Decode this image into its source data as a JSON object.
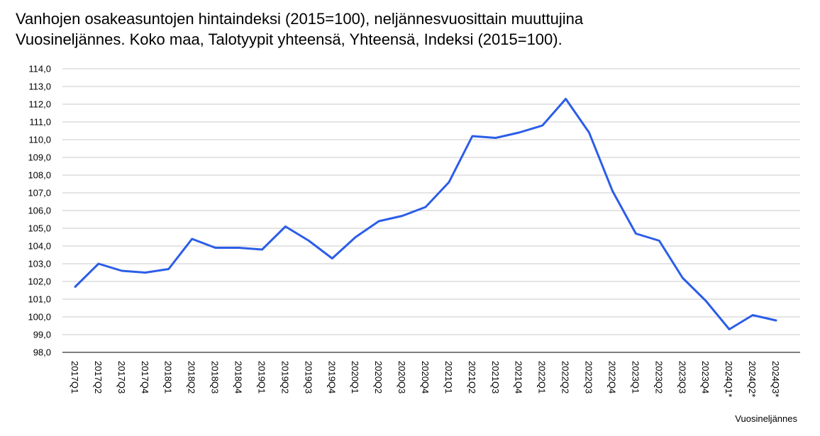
{
  "chart_data": {
    "type": "line",
    "title": "Vanhojen osakeasuntojen hintaindeksi (2015=100), neljännesvuosittain muuttujina",
    "subtitle": "Vuosineljännes. Koko maa, Talotyypit yhteensä, Yhteensä, Indeksi (2015=100).",
    "xlabel": "Vuosineljännes",
    "ylabel": "",
    "ylim": [
      98,
      114
    ],
    "yticks": [
      "98,0",
      "99,0",
      "100,0",
      "101,0",
      "102,0",
      "103,0",
      "104,0",
      "105,0",
      "106,0",
      "107,0",
      "108,0",
      "109,0",
      "110,0",
      "111,0",
      "112,0",
      "113,0",
      "114,0"
    ],
    "grid": true,
    "line_color": "#2b5de8",
    "categories": [
      "2017Q1",
      "2017Q2",
      "2017Q3",
      "2017Q4",
      "2018Q1",
      "2018Q2",
      "2018Q3",
      "2018Q4",
      "2019Q1",
      "2019Q2",
      "2019Q3",
      "2019Q4",
      "2020Q1",
      "2020Q2",
      "2020Q3",
      "2020Q4",
      "2021Q1",
      "2021Q2",
      "2021Q3",
      "2021Q4",
      "2022Q1",
      "2022Q2",
      "2022Q3",
      "2022Q4",
      "2023Q1",
      "2023Q2",
      "2023Q3",
      "2023Q4",
      "2024Q1*",
      "2024Q2*",
      "2024Q3*"
    ],
    "series": [
      {
        "values": [
          101.7,
          103.0,
          102.6,
          102.5,
          102.7,
          104.4,
          103.9,
          103.9,
          103.8,
          105.1,
          104.3,
          103.3,
          104.5,
          105.4,
          105.7,
          106.2,
          107.6,
          110.2,
          110.1,
          110.4,
          110.8,
          112.3,
          110.4,
          107.1,
          104.7,
          104.3,
          102.2,
          100.9,
          99.3,
          100.1,
          99.8
        ]
      }
    ]
  }
}
